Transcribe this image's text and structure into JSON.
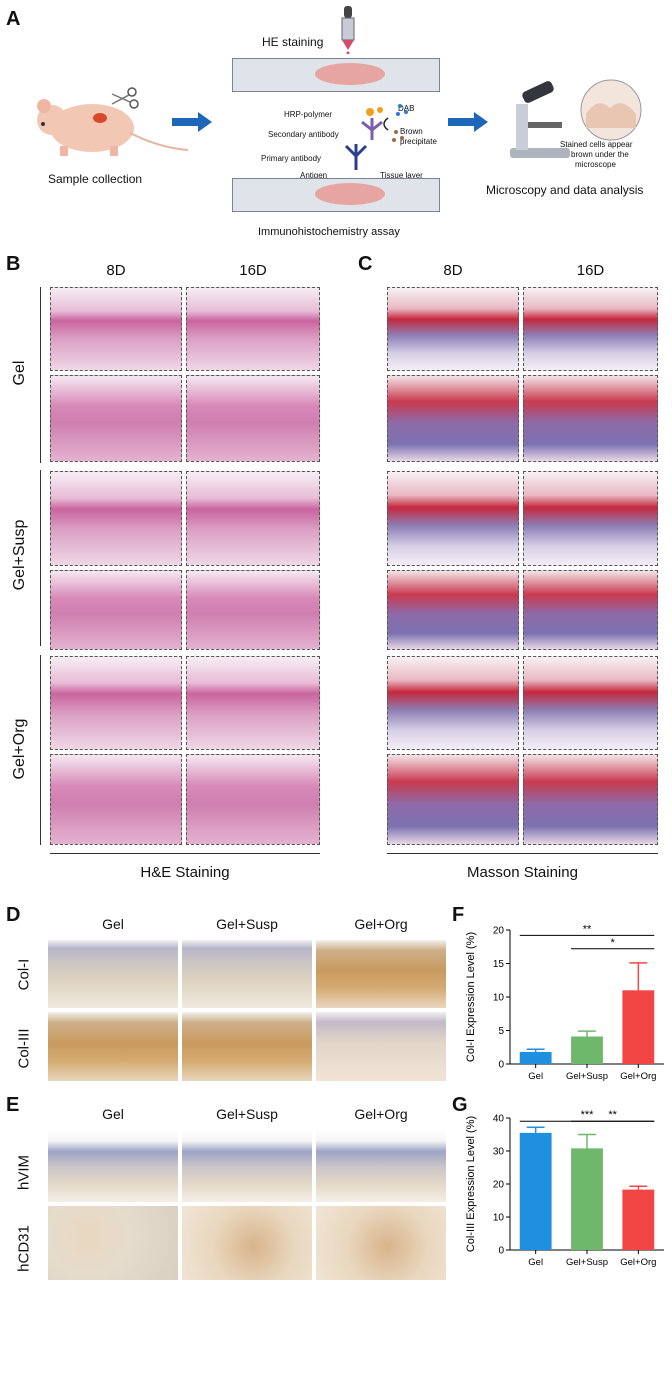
{
  "panel_labels": {
    "a": "A",
    "b": "B",
    "c": "C",
    "d": "D",
    "e": "E",
    "f": "F",
    "g": "G"
  },
  "panel_a": {
    "sample_collection": "Sample collection",
    "he_staining": "HE staining",
    "hrp_polymer": "HRP-polymer",
    "dab": "DAB",
    "secondary_antibody": "Secondary antibody",
    "brown_precipitate_line1": "Brown",
    "brown_precipitate_line2": "precipitate",
    "primary_antibody": "Primary antibody",
    "antigen": "Antigen",
    "tissue_layer": "Tissue layer",
    "ihc_assay": "Immunohistochemistry assay",
    "stained_line1": "Stained cells appear",
    "stained_line2": "brown under the",
    "stained_line3": "microscope",
    "microscopy": "Microscopy and data analysis"
  },
  "panel_bc": {
    "col_8d": "8D",
    "col_16d": "16D",
    "rows": [
      "Gel",
      "Gel+Susp",
      "Gel+Org"
    ],
    "he_caption": "H&E Staining",
    "masson_caption": "Masson Staining"
  },
  "panel_d": {
    "cols": [
      "Gel",
      "Gel+Susp",
      "Gel+Org"
    ],
    "rows": [
      "Col-I",
      "Col-III"
    ]
  },
  "panel_e": {
    "cols": [
      "Gel",
      "Gel+Susp",
      "Gel+Org"
    ],
    "rows": [
      "hVIM",
      "hCD31"
    ]
  },
  "colors": {
    "gel": "#1f8fe0",
    "susp": "#6db86b",
    "org": "#f44545"
  },
  "chart_data": [
    {
      "type": "bar",
      "panel": "F",
      "categories": [
        "Gel",
        "Gel+Susp",
        "Gel+Org"
      ],
      "values": [
        1.8,
        4.1,
        11.0
      ],
      "errors": [
        0.4,
        0.8,
        4.1
      ],
      "ylabel": "Col-I Expression Level (%)",
      "ylim": [
        0,
        20
      ],
      "yticks": [
        0,
        5,
        10,
        15,
        20
      ],
      "significance": [
        {
          "from": "Gel",
          "to": "Gel+Org",
          "label": "**"
        },
        {
          "from": "Gel+Susp",
          "to": "Gel+Org",
          "label": "*"
        }
      ]
    },
    {
      "type": "bar",
      "panel": "G",
      "categories": [
        "Gel",
        "Gel+Susp",
        "Gel+Org"
      ],
      "values": [
        35.5,
        30.8,
        18.3
      ],
      "errors": [
        1.7,
        4.2,
        1.0
      ],
      "ylabel": "Col-III Expression Level (%)",
      "ylim": [
        0,
        40
      ],
      "yticks": [
        0,
        10,
        20,
        30,
        40
      ],
      "significance": [
        {
          "from": "Gel",
          "to": "Gel+Org",
          "label": "***"
        },
        {
          "from": "Gel+Susp",
          "to": "Gel+Org",
          "label": "**"
        }
      ]
    }
  ]
}
